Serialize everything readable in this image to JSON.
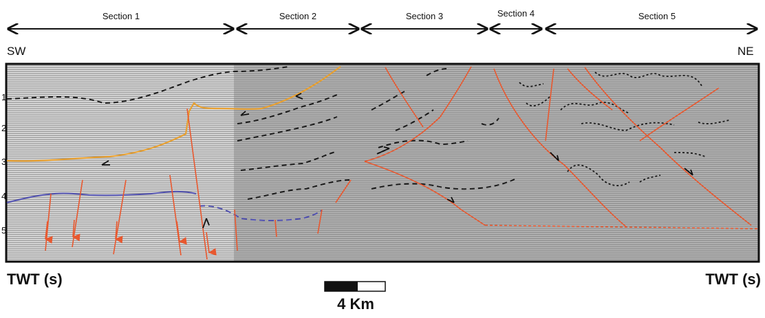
{
  "sections": [
    {
      "label": "Section 1"
    },
    {
      "label": "Section 2"
    },
    {
      "label": "Section 3"
    },
    {
      "label": "Section 4"
    },
    {
      "label": "Section 5"
    }
  ],
  "orientation": {
    "left": "SW",
    "right": "NE"
  },
  "axis": {
    "left_label": "TWT (s)",
    "right_label": "TWT (s)"
  },
  "left_ticks": [
    "1",
    "2",
    "3",
    "4",
    "5"
  ],
  "scale_bar": {
    "label": "4 Km"
  },
  "colors": {
    "fault": "#e8582f",
    "horizon_orange": "#e8a030",
    "horizon_blue": "#5050b0",
    "horizon_dashed": "#1a1a1a",
    "seismic_light": "#cfcfcf",
    "seismic_dark": "#a9a9a9",
    "frame": "#111111"
  }
}
